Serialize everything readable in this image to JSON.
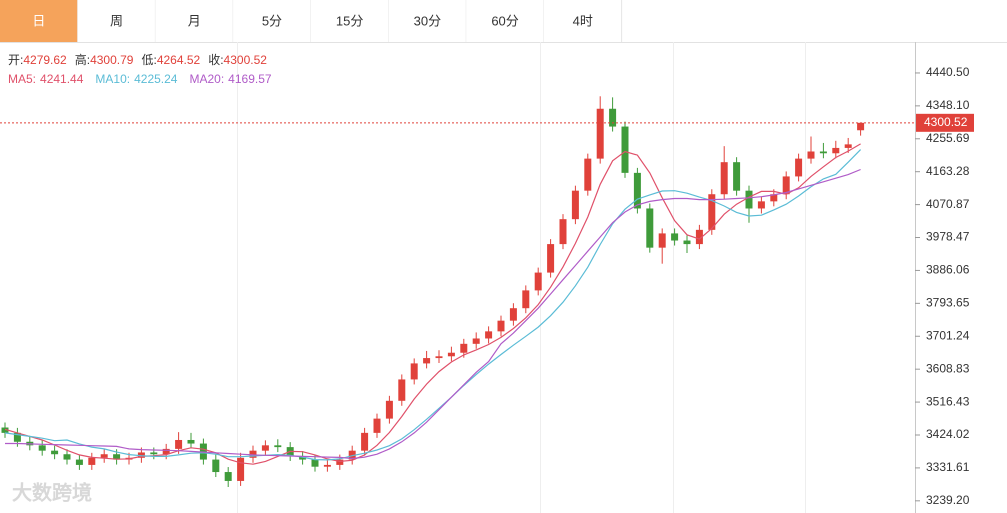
{
  "tabs": [
    "日",
    "周",
    "月",
    "5分",
    "15分",
    "30分",
    "60分",
    "4时"
  ],
  "watermark": "大数跨境",
  "chart_data": {
    "type": "candlestick",
    "ohlc_labels": [
      "开:",
      "高:",
      "低:",
      "收:"
    ],
    "up_color": "#e0413a",
    "down_color": "#3f9b3a",
    "open": [
      3445,
      3430,
      3405,
      3395,
      3380,
      3370,
      3355,
      3340,
      3360,
      3370,
      3355,
      3360,
      3375,
      3370,
      3385,
      3410,
      3400,
      3355,
      3320,
      3295,
      3360,
      3380,
      3395,
      3390,
      3365,
      3355,
      3335,
      3340,
      3355,
      3380,
      3430,
      3470,
      3520,
      3580,
      3625,
      3640,
      3645,
      3655,
      3680,
      3695,
      3715,
      3745,
      3780,
      3830,
      3880,
      3960,
      4030,
      4110,
      4200,
      4340,
      4290,
      4160,
      4060,
      3950,
      3990,
      3970,
      3960,
      4000,
      4100,
      4190,
      4110,
      4060,
      4080,
      4100,
      4150,
      4200,
      4220,
      4215,
      4230,
      4279.62
    ],
    "high": [
      3459,
      3444,
      3419,
      3409,
      3394,
      3384,
      3369,
      3374,
      3384,
      3384,
      3374,
      3389,
      3389,
      3399,
      3432,
      3430,
      3414,
      3369,
      3334,
      3374,
      3394,
      3409,
      3412,
      3404,
      3379,
      3369,
      3354,
      3369,
      3394,
      3444,
      3484,
      3534,
      3594,
      3639,
      3660,
      3662,
      3672,
      3694,
      3712,
      3729,
      3759,
      3794,
      3844,
      3894,
      3974,
      4044,
      4124,
      4214,
      4375,
      4372,
      4304,
      4174,
      4074,
      4004,
      4004,
      3984,
      4014,
      4114,
      4235,
      4204,
      4124,
      4094,
      4114,
      4164,
      4214,
      4262,
      4244,
      4250,
      4258,
      4300.79
    ],
    "low": [
      3416,
      3391,
      3381,
      3366,
      3356,
      3341,
      3326,
      3326,
      3346,
      3341,
      3341,
      3346,
      3356,
      3356,
      3371,
      3386,
      3341,
      3306,
      3278,
      3281,
      3346,
      3366,
      3376,
      3351,
      3341,
      3321,
      3321,
      3326,
      3341,
      3366,
      3416,
      3456,
      3506,
      3566,
      3611,
      3626,
      3631,
      3641,
      3666,
      3681,
      3701,
      3731,
      3766,
      3816,
      3866,
      3946,
      4016,
      4096,
      4186,
      4276,
      4146,
      4046,
      3936,
      3905,
      3956,
      3935,
      3946,
      3986,
      4086,
      4096,
      4020,
      4046,
      4066,
      4086,
      4136,
      4186,
      4201,
      4201,
      4216,
      4264.52
    ],
    "close": [
      3430,
      3405,
      3395,
      3380,
      3370,
      3355,
      3340,
      3360,
      3370,
      3355,
      3360,
      3375,
      3370,
      3385,
      3410,
      3400,
      3355,
      3320,
      3295,
      3360,
      3380,
      3395,
      3390,
      3365,
      3355,
      3335,
      3340,
      3355,
      3380,
      3430,
      3470,
      3520,
      3580,
      3625,
      3640,
      3645,
      3655,
      3680,
      3695,
      3715,
      3745,
      3780,
      3830,
      3880,
      3960,
      4030,
      4110,
      4200,
      4340,
      4290,
      4160,
      4060,
      3950,
      3990,
      3970,
      3960,
      4000,
      4100,
      4190,
      4110,
      4060,
      4080,
      4100,
      4150,
      4200,
      4220,
      4215,
      4230,
      4240,
      4300.52
    ],
    "series": [
      {
        "name": "MA5:",
        "color": "#e0516a",
        "values": [
          3440,
          3430,
          3420,
          3410,
          3396,
          3381,
          3368,
          3361,
          3359,
          3356,
          3357,
          3364,
          3366,
          3369,
          3380,
          3388,
          3384,
          3374,
          3356,
          3346,
          3342,
          3350,
          3364,
          3378,
          3377,
          3368,
          3357,
          3350,
          3353,
          3368,
          3395,
          3431,
          3476,
          3525,
          3567,
          3602,
          3629,
          3649,
          3663,
          3678,
          3698,
          3723,
          3753,
          3790,
          3839,
          3896,
          3962,
          4036,
          4128,
          4194,
          4220,
          4210,
          4160,
          4090,
          4026,
          3986,
          3974,
          4004,
          4044,
          4072,
          4092,
          4108,
          4108,
          4100,
          4118,
          4150,
          4177,
          4203,
          4221,
          4241.44
        ]
      },
      {
        "name": "MA10:",
        "color": "#5bbcd6",
        "values": [
          3430,
          3425,
          3420,
          3415,
          3408,
          3410,
          3399,
          3390,
          3385,
          3376,
          3369,
          3366,
          3364,
          3364,
          3368,
          3373,
          3374,
          3370,
          3363,
          3363,
          3365,
          3367,
          3369,
          3367,
          3362,
          3355,
          3354,
          3357,
          3366,
          3373,
          3382,
          3394,
          3413,
          3439,
          3468,
          3499,
          3530,
          3563,
          3594,
          3623,
          3650,
          3676,
          3701,
          3727,
          3759,
          3797,
          3843,
          3895,
          3959,
          4017,
          4058,
          4086,
          4098,
          4109,
          4110,
          4103,
          4092,
          4082,
          4067,
          4049,
          4039,
          4041,
          4056,
          4072,
          4095,
          4121,
          4143,
          4156,
          4190,
          4225.24
        ]
      },
      {
        "name": "MA20:",
        "color": "#b05cc8",
        "values": [
          3400,
          3400,
          3399,
          3398,
          3397,
          3396,
          3395,
          3394,
          3393,
          3392,
          3385,
          3383,
          3382,
          3381,
          3380,
          3378,
          3376,
          3374,
          3372,
          3370,
          3368,
          3367,
          3366,
          3365,
          3364,
          3363,
          3362,
          3361,
          3358,
          3362,
          3370,
          3385,
          3405,
          3430,
          3460,
          3495,
          3530,
          3565,
          3600,
          3630,
          3680,
          3710,
          3745,
          3780,
          3820,
          3860,
          3900,
          3940,
          3980,
          4020,
          4050,
          4070,
          4080,
          4085,
          4088,
          4088,
          4085,
          4085,
          4086,
          4088,
          4090,
          4093,
          4098,
          4105,
          4115,
          4125,
          4135,
          4145,
          4155,
          4169.57
        ]
      }
    ],
    "ylim": [
      3205,
      4519
    ],
    "yticks": [
      {
        "value": 4440.5,
        "label": "4440.50"
      },
      {
        "value": 4348.1,
        "label": "4348.10"
      },
      4255.69,
      4163.28,
      4070.87,
      3978.47,
      3886.06,
      3793.65,
      3701.24,
      3608.83,
      3516.43,
      3424.02,
      3331.61,
      {
        "value": 3239.2,
        "label": "3239.20"
      }
    ]
  }
}
